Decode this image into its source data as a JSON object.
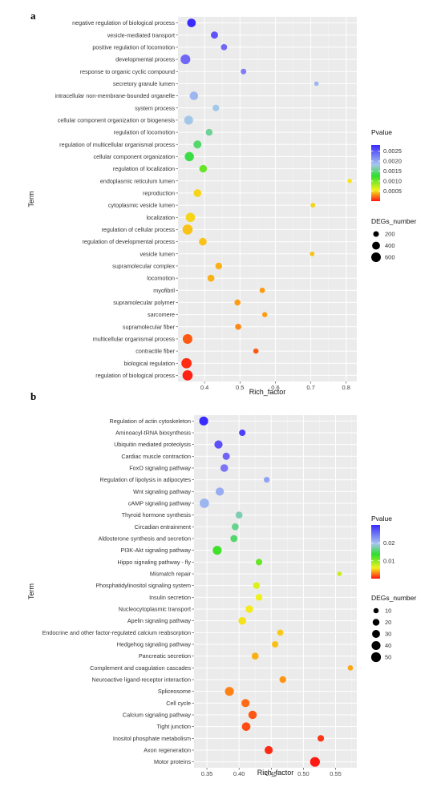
{
  "chart_data": [
    {
      "type": "scatter",
      "panel_label": "a",
      "xlabel": "Rich_factor",
      "ylabel": "Term",
      "xlim": [
        0.325,
        0.83
      ],
      "x_ticks": [
        0.4,
        0.5,
        0.6,
        0.7,
        0.8
      ],
      "x_tick_labels": [
        "0.4",
        "0.5",
        "0.6",
        "0.7",
        "0.8"
      ],
      "color_legend": {
        "title": "Pvalue",
        "min": 0.0,
        "max": 0.0028,
        "ticks": [
          0.0025,
          0.002,
          0.0015,
          0.001,
          0.0005
        ],
        "tick_labels": [
          "0.0025",
          "0.0020",
          "0.0015",
          "0.0010",
          "0.0005"
        ]
      },
      "size_legend": {
        "title": "DEGs_number",
        "values": [
          200,
          400,
          600
        ],
        "labels": [
          "200",
          "400",
          "600"
        ],
        "size_min": 100,
        "size_max": 700
      },
      "points": [
        {
          "term": "negative regulation of biological process",
          "x": 0.363,
          "pvalue": 0.0028,
          "degs": 480
        },
        {
          "term": "vesicle-mediated transport",
          "x": 0.428,
          "pvalue": 0.0026,
          "degs": 330
        },
        {
          "term": "positive regulation of locomotion",
          "x": 0.455,
          "pvalue": 0.0025,
          "degs": 240
        },
        {
          "term": "developmental process",
          "x": 0.346,
          "pvalue": 0.0025,
          "degs": 620
        },
        {
          "term": "response to organic cyclic compound",
          "x": 0.51,
          "pvalue": 0.0024,
          "degs": 190
        },
        {
          "term": "secretory granule lumen",
          "x": 0.716,
          "pvalue": 0.0021,
          "degs": 120
        },
        {
          "term": "intracellular non-membrane-bounded organelle",
          "x": 0.37,
          "pvalue": 0.0021,
          "degs": 470
        },
        {
          "term": "system process",
          "x": 0.432,
          "pvalue": 0.002,
          "degs": 280
        },
        {
          "term": "cellular component organization or biogenesis",
          "x": 0.355,
          "pvalue": 0.002,
          "degs": 520
        },
        {
          "term": "regulation of locomotion",
          "x": 0.413,
          "pvalue": 0.0018,
          "degs": 290
        },
        {
          "term": "regulation of multicellular organismal process",
          "x": 0.38,
          "pvalue": 0.0017,
          "degs": 420
        },
        {
          "term": "cellular component organization",
          "x": 0.357,
          "pvalue": 0.0016,
          "degs": 560
        },
        {
          "term": "regulation of localization",
          "x": 0.396,
          "pvalue": 0.0014,
          "degs": 370
        },
        {
          "term": "endoplasmic reticulum lumen",
          "x": 0.81,
          "pvalue": 0.001,
          "degs": 110
        },
        {
          "term": "reproduction",
          "x": 0.38,
          "pvalue": 0.0009,
          "degs": 390
        },
        {
          "term": "cytoplasmic vesicle lumen",
          "x": 0.706,
          "pvalue": 0.0009,
          "degs": 130
        },
        {
          "term": "localization",
          "x": 0.36,
          "pvalue": 0.0009,
          "degs": 560
        },
        {
          "term": "regulation of cellular process",
          "x": 0.352,
          "pvalue": 0.0008,
          "degs": 680
        },
        {
          "term": "regulation of developmental process",
          "x": 0.395,
          "pvalue": 0.0008,
          "degs": 380
        },
        {
          "term": "vesicle lumen",
          "x": 0.704,
          "pvalue": 0.0008,
          "degs": 130
        },
        {
          "term": "supramolecular complex",
          "x": 0.44,
          "pvalue": 0.0007,
          "degs": 290
        },
        {
          "term": "locomotion",
          "x": 0.418,
          "pvalue": 0.0007,
          "degs": 310
        },
        {
          "term": "myofibril",
          "x": 0.563,
          "pvalue": 0.0006,
          "degs": 180
        },
        {
          "term": "supramolecular polymer",
          "x": 0.493,
          "pvalue": 0.0006,
          "degs": 230
        },
        {
          "term": "sarcomere",
          "x": 0.57,
          "pvalue": 0.0006,
          "degs": 160
        },
        {
          "term": "supramolecular fiber",
          "x": 0.495,
          "pvalue": 0.0005,
          "degs": 230
        },
        {
          "term": "multicellular organismal process",
          "x": 0.352,
          "pvalue": 0.0003,
          "degs": 620
        },
        {
          "term": "contractile fiber",
          "x": 0.545,
          "pvalue": 0.0003,
          "degs": 170
        },
        {
          "term": "biological regulation",
          "x": 0.349,
          "pvalue": 0.0001,
          "degs": 700
        },
        {
          "term": "regulation of biological process",
          "x": 0.352,
          "pvalue": 5e-05,
          "degs": 690
        }
      ]
    },
    {
      "type": "scatter",
      "panel_label": "b",
      "xlabel": "Rich_factor",
      "ylabel": "Term",
      "xlim": [
        0.33,
        0.583
      ],
      "x_ticks": [
        0.35,
        0.4,
        0.45,
        0.5,
        0.55
      ],
      "x_tick_labels": [
        "0.35",
        "0.40",
        "0.45",
        "0.50",
        "0.55"
      ],
      "color_legend": {
        "title": "Pvalue",
        "min": 0.0,
        "max": 0.03,
        "ticks": [
          0.02,
          0.01
        ],
        "tick_labels": [
          "0.02",
          "0.01"
        ]
      },
      "size_legend": {
        "title": "DEGs_number",
        "values": [
          10,
          20,
          30,
          40,
          50
        ],
        "labels": [
          "10",
          "20",
          "30",
          "40",
          "50"
        ],
        "size_min": 5,
        "size_max": 52
      },
      "points": [
        {
          "term": "Regulation of actin cytoskeleton",
          "x": 0.345,
          "pvalue": 0.03,
          "degs": 40
        },
        {
          "term": "Aminoacyl-tRNA biosynthesis",
          "x": 0.405,
          "pvalue": 0.029,
          "degs": 18
        },
        {
          "term": "Ubiquitin mediated proteolysis",
          "x": 0.368,
          "pvalue": 0.028,
          "degs": 33
        },
        {
          "term": "Cardiac muscle contraction",
          "x": 0.38,
          "pvalue": 0.027,
          "degs": 24
        },
        {
          "term": "FoxO signaling pathway",
          "x": 0.377,
          "pvalue": 0.026,
          "degs": 28
        },
        {
          "term": "Regulation of lipolysis in adipocytes",
          "x": 0.443,
          "pvalue": 0.0235,
          "degs": 14
        },
        {
          "term": "Wnt signaling pathway",
          "x": 0.37,
          "pvalue": 0.023,
          "degs": 33
        },
        {
          "term": "cAMP signaling pathway",
          "x": 0.346,
          "pvalue": 0.0225,
          "degs": 45
        },
        {
          "term": "Thyroid hormone synthesis",
          "x": 0.4,
          "pvalue": 0.02,
          "degs": 22
        },
        {
          "term": "Circadian entrainment",
          "x": 0.394,
          "pvalue": 0.019,
          "degs": 22
        },
        {
          "term": "Aldosterone synthesis and secretion",
          "x": 0.392,
          "pvalue": 0.018,
          "degs": 22
        },
        {
          "term": "PI3K-Akt signaling pathway",
          "x": 0.366,
          "pvalue": 0.016,
          "degs": 40
        },
        {
          "term": "Hippo signaling pathway - fly",
          "x": 0.431,
          "pvalue": 0.015,
          "degs": 18
        },
        {
          "term": "Mismatch repair",
          "x": 0.556,
          "pvalue": 0.0125,
          "degs": 7
        },
        {
          "term": "Phosphatidylinositol signaling system",
          "x": 0.427,
          "pvalue": 0.012,
          "degs": 20
        },
        {
          "term": "Insulin secretion",
          "x": 0.431,
          "pvalue": 0.0115,
          "degs": 20
        },
        {
          "term": "Nucleocytoplasmic transport",
          "x": 0.416,
          "pvalue": 0.011,
          "degs": 26
        },
        {
          "term": "Apelin signaling pathway",
          "x": 0.405,
          "pvalue": 0.0105,
          "degs": 28
        },
        {
          "term": "Endocrine and other factor-regulated calcium reabsorption",
          "x": 0.464,
          "pvalue": 0.009,
          "degs": 16
        },
        {
          "term": "Hedgehog signaling pathway",
          "x": 0.456,
          "pvalue": 0.0085,
          "degs": 18
        },
        {
          "term": "Pancreatic secretion",
          "x": 0.425,
          "pvalue": 0.0075,
          "degs": 22
        },
        {
          "term": "Complement and coagulation cascades",
          "x": 0.573,
          "pvalue": 0.007,
          "degs": 11
        },
        {
          "term": "Neuroactive ligand-receptor interaction",
          "x": 0.468,
          "pvalue": 0.006,
          "degs": 20
        },
        {
          "term": "Spliceosome",
          "x": 0.385,
          "pvalue": 0.005,
          "degs": 40
        },
        {
          "term": "Cell cycle",
          "x": 0.41,
          "pvalue": 0.004,
          "degs": 32
        },
        {
          "term": "Calcium signaling pathway",
          "x": 0.421,
          "pvalue": 0.003,
          "degs": 34
        },
        {
          "term": "Tight junction",
          "x": 0.411,
          "pvalue": 0.0025,
          "degs": 36
        },
        {
          "term": "Inositol phosphate metabolism",
          "x": 0.527,
          "pvalue": 0.0015,
          "degs": 18
        },
        {
          "term": "Axon regeneration",
          "x": 0.446,
          "pvalue": 0.001,
          "degs": 32
        },
        {
          "term": "Motor proteins",
          "x": 0.518,
          "pvalue": 0.0003,
          "degs": 50
        }
      ]
    }
  ]
}
